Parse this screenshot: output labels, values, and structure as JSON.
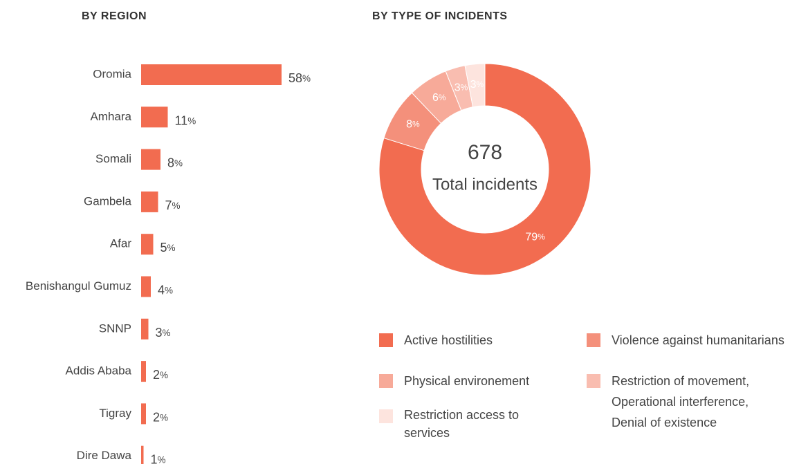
{
  "chart_data": [
    {
      "type": "hbar",
      "title": "BY REGION",
      "categories": [
        "Oromia",
        "Amhara",
        "Somali",
        "Gambela",
        "Afar",
        "Benishangul Gumuz",
        "SNNP",
        "Addis Ababa",
        "Tigray",
        "Dire Dawa"
      ],
      "values": [
        58,
        11,
        8,
        7,
        5,
        4,
        3,
        2,
        2,
        1
      ],
      "value_labels": [
        "58%",
        "11%",
        "8%",
        "7%",
        "5%",
        "4%",
        "3%",
        "2%",
        "2%",
        "1%"
      ],
      "color": "#f26c50"
    },
    {
      "type": "donut",
      "title": "BY TYPE OF INCIDENTS",
      "center_value": "678",
      "center_label": "Total incidents",
      "series": [
        {
          "name": "Active hostilities",
          "color": "#f26c50",
          "values": [
            79
          ],
          "value_labels": [
            "79%"
          ]
        },
        {
          "name": "Violence against humanitarians",
          "color": "#f4907b",
          "values": [
            8
          ],
          "value_labels": [
            "8%"
          ]
        },
        {
          "name": "Physical environement",
          "color": "#f7aa99",
          "values": [
            6
          ],
          "value_labels": [
            "6%"
          ]
        },
        {
          "name": "Restriction of movement, Operational interference, Denial of existence",
          "color": "#f9bdb0",
          "values": [
            3
          ],
          "value_labels": [
            "3%"
          ]
        },
        {
          "name": "Restriction access to services",
          "color": "#fde4de",
          "values": [
            3
          ],
          "value_labels": [
            "3%"
          ]
        }
      ]
    }
  ]
}
